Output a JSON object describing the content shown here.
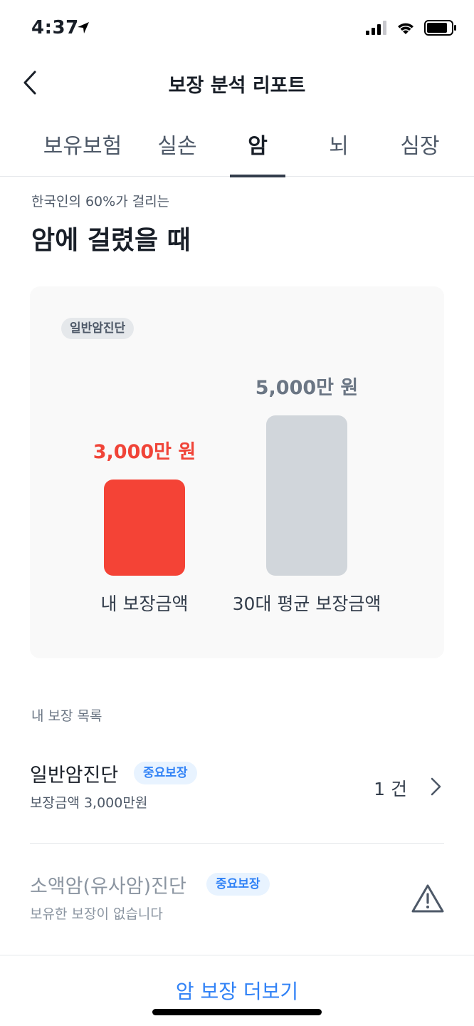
{
  "status_bar": {
    "time": "4:37",
    "battery_level": 0.85
  },
  "header": {
    "title": "보장 분석 리포트",
    "back_icon": "chevron-left-icon"
  },
  "tabs": [
    {
      "label": "보유보험",
      "active": false
    },
    {
      "label": "실손",
      "active": false
    },
    {
      "label": "암",
      "active": true
    },
    {
      "label": "뇌",
      "active": false
    },
    {
      "label": "심장",
      "active": false
    }
  ],
  "section": {
    "subtitle": "한국인의 60%가 걸리는",
    "title": "암에 걸렸을 때"
  },
  "chart_data": {
    "type": "bar",
    "chip": "일반암진단",
    "categories": [
      "내 보장금액",
      "30대 평균 보장금액"
    ],
    "values": [
      3000,
      5000
    ],
    "value_labels": [
      "3,000만 원",
      "5,000만 원"
    ],
    "colors": [
      "#f44336",
      "#d1d6db"
    ],
    "label_colors": [
      "#f04438",
      "#6b7684"
    ]
  },
  "coverage_list": {
    "heading": "내 보장 목록",
    "items": [
      {
        "name": "일반암진단",
        "badge": "중요보장",
        "sub": "보장금액 3,000만원",
        "count": "1 건"
      },
      {
        "name": "소액암(유사암)진단",
        "badge": "중요보장",
        "sub": "보유한 보장이 없습니다",
        "icon": "warning-icon"
      }
    ]
  },
  "more_button": {
    "label": "암 보장 더보기"
  },
  "colors": {
    "accent": "#3182f6",
    "red": "#f44336",
    "gray_bar": "#d1d6db"
  }
}
